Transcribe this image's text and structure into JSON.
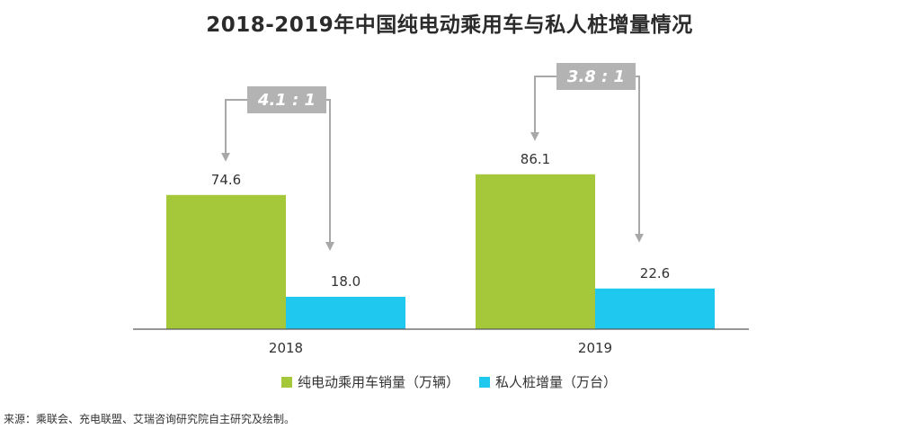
{
  "chart_data": {
    "type": "bar",
    "title": "2018-2019年中国纯电动乘用车与私人桩增量情况",
    "categories": [
      "2018",
      "2019"
    ],
    "series": [
      {
        "name": "纯电动乘用车销量（万辆）",
        "values": [
          74.6,
          86.1
        ],
        "color": "#a4c83a"
      },
      {
        "name": "私人桩增量（万台）",
        "values": [
          18.0,
          22.6
        ],
        "color": "#1ec8ee"
      }
    ],
    "data_labels": [
      [
        "74.6",
        "86.1"
      ],
      [
        "18.0",
        "22.6"
      ]
    ],
    "ratios": [
      "4.1 : 1",
      "3.8 : 1"
    ],
    "ylim": [
      0,
      100
    ],
    "y_axis_visible": false,
    "grid": false,
    "legend_position": "bottom",
    "ratio_box_color": "#b3b3b3",
    "arrow_color": "#a8a8a8",
    "axis_color": "#595959"
  },
  "source": "来源：乘联会、充电联盟、艾瑞咨询研究院自主研究及绘制。"
}
